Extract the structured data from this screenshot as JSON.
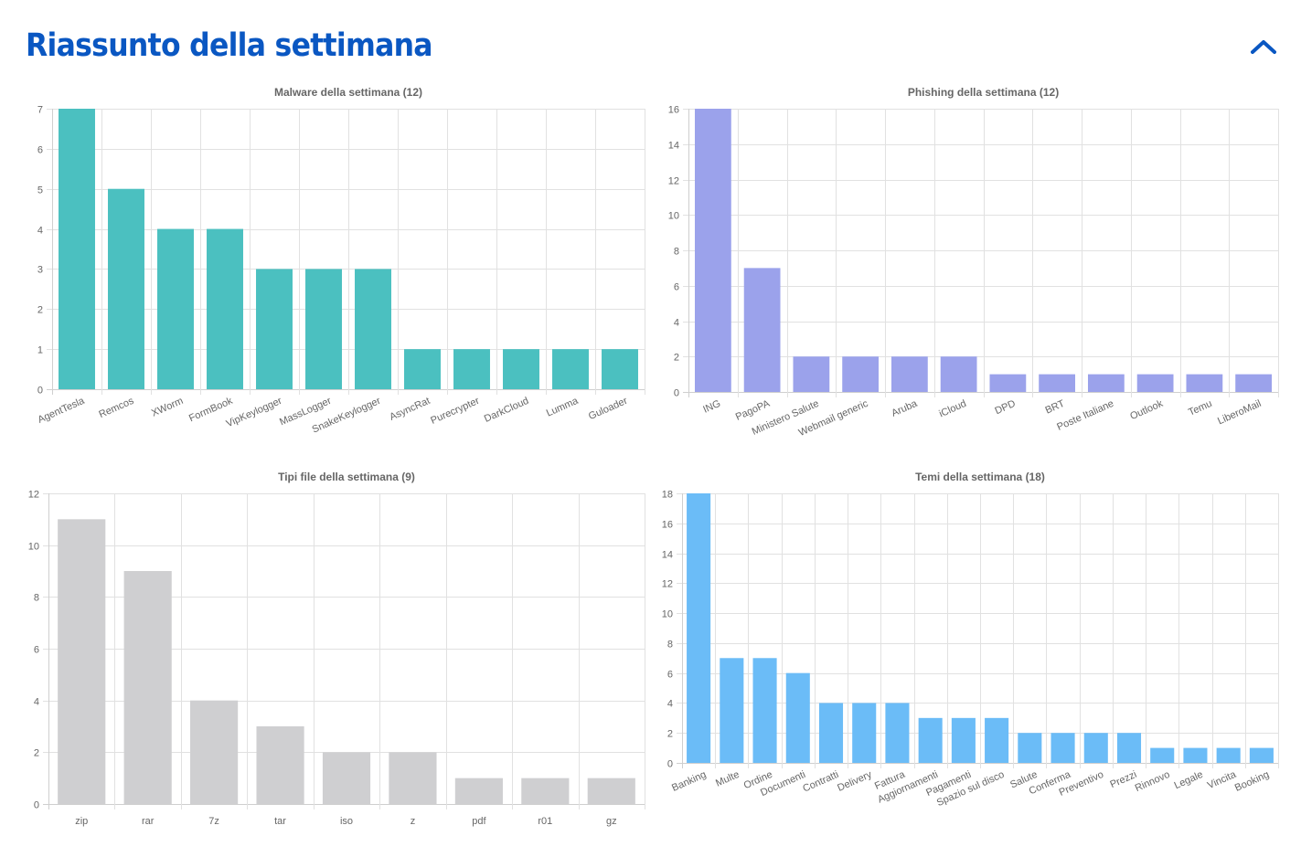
{
  "page": {
    "title": "Riassunto della settimana",
    "collapse_icon": "chevron-up-icon",
    "accent_color": "#0a57c2"
  },
  "chart_data": [
    {
      "id": "malware",
      "type": "bar",
      "title": "Malware della settimana (12)",
      "categories": [
        "AgentTesla",
        "Remcos",
        "XWorm",
        "FormBook",
        "VipKeylogger",
        "MassLogger",
        "SnakeKeylogger",
        "AsyncRat",
        "Purecrypter",
        "DarkCloud",
        "Lumma",
        "Guloader"
      ],
      "values": [
        7,
        5,
        4,
        4,
        3,
        3,
        3,
        1,
        1,
        1,
        1,
        1
      ],
      "ylim": [
        0,
        7
      ],
      "yticks": [
        0,
        1,
        2,
        3,
        4,
        5,
        6,
        7
      ],
      "color": "#4bc0c0",
      "rotate_labels": true,
      "grid": true
    },
    {
      "id": "phishing",
      "type": "bar",
      "title": "Phishing della settimana (12)",
      "categories": [
        "ING",
        "PagoPA",
        "Ministero Salute",
        "Webmail generic",
        "Aruba",
        "iCloud",
        "DPD",
        "BRT",
        "Poste Italiane",
        "Outlook",
        "Temu",
        "LiberoMail"
      ],
      "values": [
        16,
        7,
        2,
        2,
        2,
        2,
        1,
        1,
        1,
        1,
        1,
        1
      ],
      "ylim": [
        0,
        16
      ],
      "yticks": [
        0,
        2,
        4,
        6,
        8,
        10,
        12,
        14,
        16
      ],
      "color": "#9ba2eb",
      "rotate_labels": true,
      "grid": true
    },
    {
      "id": "filetypes",
      "type": "bar",
      "title": "Tipi file della settimana (9)",
      "categories": [
        "zip",
        "rar",
        "7z",
        "tar",
        "iso",
        "z",
        "pdf",
        "r01",
        "gz"
      ],
      "values": [
        11,
        9,
        4,
        3,
        2,
        2,
        1,
        1,
        1
      ],
      "ylim": [
        0,
        12
      ],
      "yticks": [
        0,
        2,
        4,
        6,
        8,
        10,
        12
      ],
      "color": "#cfcfd1",
      "rotate_labels": false,
      "grid": true
    },
    {
      "id": "temi",
      "type": "bar",
      "title": "Temi della settimana (18)",
      "categories": [
        "Banking",
        "Multe",
        "Ordine",
        "Documenti",
        "Contratti",
        "Delivery",
        "Fattura",
        "Aggiornamenti",
        "Pagamenti",
        "Spazio sul disco",
        "Salute",
        "Conferma",
        "Preventivo",
        "Prezzi",
        "Rinnovo",
        "Legale",
        "Vincita",
        "Booking"
      ],
      "values": [
        18,
        7,
        7,
        6,
        4,
        4,
        4,
        3,
        3,
        3,
        2,
        2,
        2,
        2,
        1,
        1,
        1,
        1
      ],
      "ylim": [
        0,
        18
      ],
      "yticks": [
        0,
        2,
        4,
        6,
        8,
        10,
        12,
        14,
        16,
        18
      ],
      "color": "#6bbcf7",
      "rotate_labels": true,
      "grid": true
    }
  ]
}
